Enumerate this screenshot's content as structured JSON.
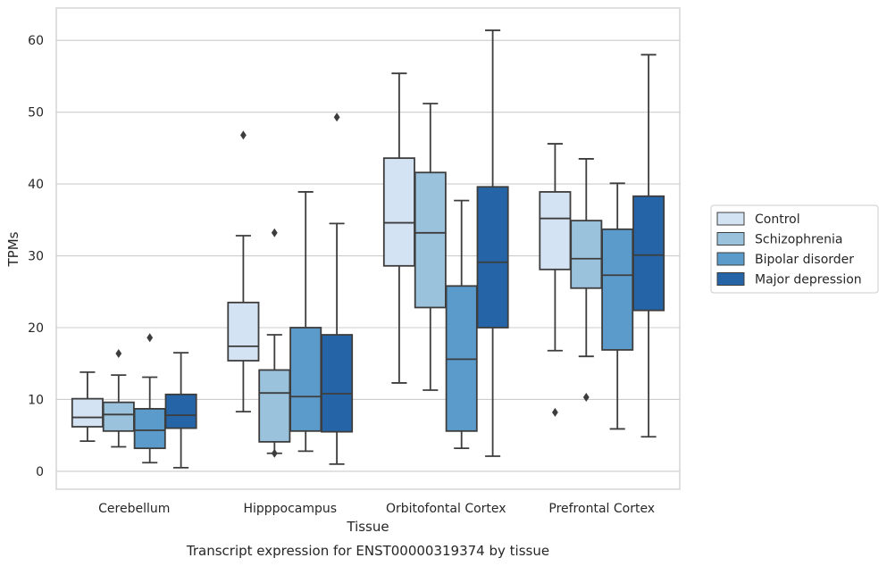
{
  "chart_data": {
    "type": "box",
    "caption": "Transcript expression for ENST00000319374 by tissue",
    "xlabel": "Tissue",
    "ylabel": "TPMs",
    "ylim": [
      -2.5,
      64.5
    ],
    "yticks": [
      0,
      10,
      20,
      30,
      40,
      50,
      60
    ],
    "grid": true,
    "legend_position": "right",
    "categories": [
      "Cerebellum",
      "Hipppocampus",
      "Orbitofontal Cortex",
      "Prefrontal Cortex"
    ],
    "series": [
      {
        "name": "Control",
        "color": "#d4e3f3",
        "boxes": [
          {
            "whislo": 4.2,
            "q1": 6.2,
            "med": 7.5,
            "q3": 10.1,
            "whishi": 13.8,
            "fliers": []
          },
          {
            "whislo": 8.3,
            "q1": 15.4,
            "med": 17.4,
            "q3": 23.5,
            "whishi": 32.8,
            "fliers": [
              46.8
            ]
          },
          {
            "whislo": 12.3,
            "q1": 28.6,
            "med": 34.6,
            "q3": 43.6,
            "whishi": 55.4,
            "fliers": []
          },
          {
            "whislo": 16.8,
            "q1": 28.1,
            "med": 35.2,
            "q3": 38.9,
            "whishi": 45.6,
            "fliers": [
              8.2
            ]
          }
        ]
      },
      {
        "name": "Schizophrenia",
        "color": "#9ac2dc",
        "boxes": [
          {
            "whislo": 3.4,
            "q1": 5.6,
            "med": 7.9,
            "q3": 9.6,
            "whishi": 13.4,
            "fliers": [
              16.4
            ]
          },
          {
            "whislo": 2.5,
            "q1": 4.1,
            "med": 10.9,
            "q3": 14.1,
            "whishi": 19.0,
            "fliers": [
              33.2,
              2.5
            ]
          },
          {
            "whislo": 11.3,
            "q1": 22.8,
            "med": 33.2,
            "q3": 41.6,
            "whishi": 51.2,
            "fliers": []
          },
          {
            "whislo": 16.0,
            "q1": 25.5,
            "med": 29.6,
            "q3": 34.9,
            "whishi": 43.5,
            "fliers": [
              10.3
            ]
          }
        ]
      },
      {
        "name": "Bipolar disorder",
        "color": "#5b9bcc",
        "boxes": [
          {
            "whislo": 1.2,
            "q1": 3.2,
            "med": 5.7,
            "q3": 8.7,
            "whishi": 13.1,
            "fliers": [
              18.6
            ]
          },
          {
            "whislo": 2.8,
            "q1": 5.6,
            "med": 10.4,
            "q3": 20.0,
            "whishi": 38.9,
            "fliers": []
          },
          {
            "whislo": 3.2,
            "q1": 5.6,
            "med": 15.6,
            "q3": 25.8,
            "whishi": 37.7,
            "fliers": []
          },
          {
            "whislo": 5.9,
            "q1": 16.9,
            "med": 27.3,
            "q3": 33.7,
            "whishi": 40.1,
            "fliers": []
          }
        ]
      },
      {
        "name": "Major depression",
        "color": "#2565a7",
        "boxes": [
          {
            "whislo": 0.5,
            "q1": 6.0,
            "med": 7.8,
            "q3": 10.7,
            "whishi": 16.5,
            "fliers": []
          },
          {
            "whislo": 1.0,
            "q1": 5.5,
            "med": 10.8,
            "q3": 19.0,
            "whishi": 34.5,
            "fliers": [
              49.3
            ]
          },
          {
            "whislo": 2.1,
            "q1": 20.0,
            "med": 29.1,
            "q3": 39.6,
            "whishi": 61.4,
            "fliers": []
          },
          {
            "whislo": 4.8,
            "q1": 22.4,
            "med": 30.1,
            "q3": 38.3,
            "whishi": 58.0,
            "fliers": []
          }
        ]
      }
    ]
  }
}
